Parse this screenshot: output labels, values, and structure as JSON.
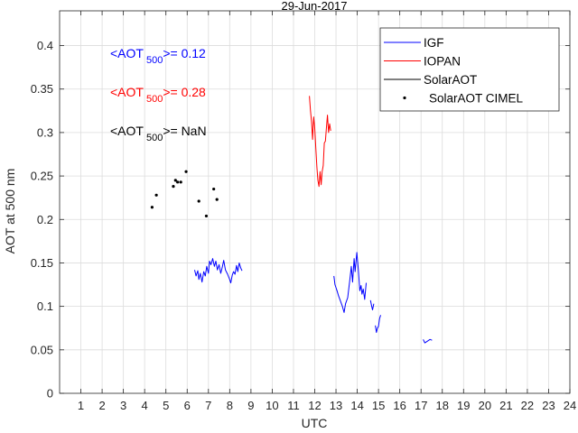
{
  "chart_data": {
    "type": "line",
    "title": "29-Jun-2017",
    "xlabel": "UTC",
    "ylabel": "AOT at 500 nm",
    "xlim": [
      0,
      24
    ],
    "ylim": [
      0,
      0.44
    ],
    "x_ticks": [
      1,
      2,
      3,
      4,
      5,
      6,
      7,
      8,
      9,
      10,
      11,
      12,
      13,
      14,
      15,
      16,
      17,
      18,
      19,
      20,
      21,
      22,
      23,
      24
    ],
    "y_ticks": [
      0,
      0.05,
      0.1,
      0.15,
      0.2,
      0.25,
      0.3,
      0.35,
      0.4
    ],
    "y_tick_labels": [
      "0",
      "0.05",
      "0.1",
      "0.15",
      "0.2",
      "0.25",
      "0.3",
      "0.35",
      "0.4"
    ],
    "grid": true,
    "legend_position": "top-right",
    "series": [
      {
        "name": "IGF",
        "color": "#0000ff",
        "kind": "line",
        "segments": [
          [
            [
              6.35,
              0.142
            ],
            [
              6.42,
              0.135
            ],
            [
              6.5,
              0.141
            ],
            [
              6.55,
              0.131
            ],
            [
              6.62,
              0.138
            ],
            [
              6.7,
              0.128
            ],
            [
              6.78,
              0.14
            ],
            [
              6.85,
              0.135
            ],
            [
              6.92,
              0.146
            ],
            [
              7.0,
              0.138
            ],
            [
              7.05,
              0.152
            ],
            [
              7.12,
              0.148
            ],
            [
              7.2,
              0.155
            ],
            [
              7.28,
              0.146
            ],
            [
              7.35,
              0.152
            ],
            [
              7.42,
              0.142
            ],
            [
              7.5,
              0.148
            ],
            [
              7.58,
              0.138
            ],
            [
              7.65,
              0.145
            ],
            [
              7.72,
              0.153
            ],
            [
              7.8,
              0.142
            ],
            [
              7.9,
              0.137
            ],
            [
              8.0,
              0.131
            ],
            [
              8.05,
              0.127
            ],
            [
              8.12,
              0.136
            ],
            [
              8.18,
              0.14
            ],
            [
              8.25,
              0.137
            ],
            [
              8.32,
              0.147
            ],
            [
              8.38,
              0.14
            ],
            [
              8.45,
              0.15
            ],
            [
              8.52,
              0.144
            ],
            [
              8.58,
              0.141
            ]
          ],
          [
            [
              12.9,
              0.135
            ],
            [
              12.95,
              0.125
            ],
            [
              13.05,
              0.118
            ],
            [
              13.12,
              0.112
            ],
            [
              13.2,
              0.107
            ],
            [
              13.3,
              0.1
            ],
            [
              13.38,
              0.093
            ],
            [
              13.45,
              0.103
            ],
            [
              13.55,
              0.11
            ],
            [
              13.65,
              0.13
            ],
            [
              13.72,
              0.146
            ],
            [
              13.78,
              0.128
            ],
            [
              13.85,
              0.155
            ],
            [
              13.9,
              0.14
            ],
            [
              13.98,
              0.162
            ],
            [
              14.05,
              0.142
            ],
            [
              14.12,
              0.118
            ],
            [
              14.18,
              0.124
            ],
            [
              14.22,
              0.114
            ],
            [
              14.28,
              0.12
            ],
            [
              14.35,
              0.108
            ],
            [
              14.42,
              0.127
            ]
          ],
          [
            [
              14.62,
              0.107
            ],
            [
              14.68,
              0.1
            ],
            [
              14.72,
              0.096
            ],
            [
              14.78,
              0.103
            ]
          ],
          [
            [
              14.85,
              0.078
            ],
            [
              14.9,
              0.07
            ],
            [
              14.95,
              0.075
            ],
            [
              15.0,
              0.077
            ],
            [
              15.05,
              0.086
            ],
            [
              15.1,
              0.09
            ]
          ],
          [
            [
              17.1,
              0.062
            ],
            [
              17.18,
              0.058
            ],
            [
              17.3,
              0.06
            ],
            [
              17.42,
              0.062
            ],
            [
              17.52,
              0.061
            ]
          ]
        ]
      },
      {
        "name": "IOPAN",
        "color": "#ff0000",
        "kind": "line",
        "segments": [
          [
            [
              11.75,
              0.342
            ],
            [
              11.8,
              0.325
            ],
            [
              11.85,
              0.312
            ],
            [
              11.9,
              0.292
            ],
            [
              11.95,
              0.318
            ],
            [
              12.0,
              0.305
            ],
            [
              12.05,
              0.282
            ],
            [
              12.1,
              0.26
            ],
            [
              12.15,
              0.245
            ],
            [
              12.2,
              0.238
            ],
            [
              12.25,
              0.255
            ],
            [
              12.3,
              0.24
            ],
            [
              12.35,
              0.255
            ],
            [
              12.4,
              0.262
            ],
            [
              12.45,
              0.288
            ],
            [
              12.5,
              0.29
            ],
            [
              12.55,
              0.305
            ],
            [
              12.6,
              0.32
            ],
            [
              12.65,
              0.3
            ],
            [
              12.7,
              0.31
            ],
            [
              12.75,
              0.302
            ]
          ]
        ]
      },
      {
        "name": "SolarAOT",
        "color": "#000000",
        "kind": "line",
        "segments": []
      },
      {
        "name": "SolarAOT CIMEL",
        "color": "#000000",
        "kind": "points",
        "points": [
          [
            4.35,
            0.214
          ],
          [
            4.55,
            0.228
          ],
          [
            5.35,
            0.238
          ],
          [
            5.45,
            0.245
          ],
          [
            5.55,
            0.243
          ],
          [
            5.7,
            0.243
          ],
          [
            5.95,
            0.255
          ],
          [
            6.55,
            0.221
          ],
          [
            6.9,
            0.204
          ],
          [
            7.25,
            0.235
          ],
          [
            7.4,
            0.223
          ]
        ]
      }
    ]
  },
  "annotations": [
    {
      "prefix": "<AOT",
      "sub": "500",
      "suffix": ">= 0.12",
      "color": "#0000ff"
    },
    {
      "prefix": "<AOT",
      "sub": "500",
      "suffix": ">= 0.28",
      "color": "#ff0000"
    },
    {
      "prefix": "<AOT",
      "sub": "500",
      "suffix": ">=  NaN",
      "color": "#000000"
    }
  ]
}
